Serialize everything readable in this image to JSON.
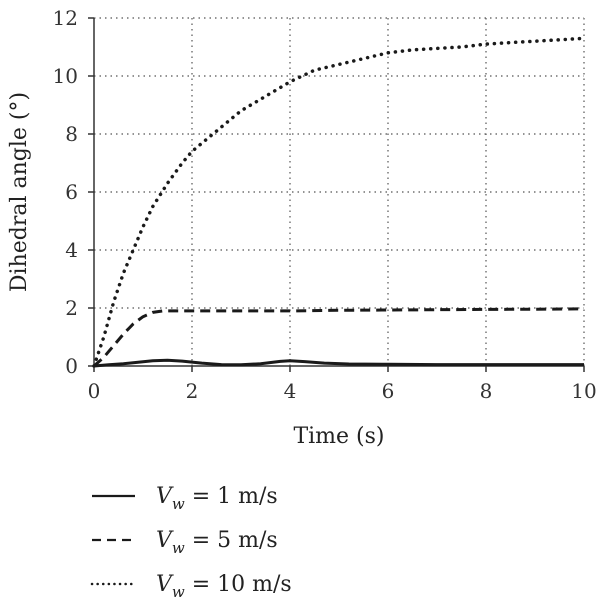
{
  "chart_data": {
    "type": "line",
    "xlabel": "Time (s)",
    "ylabel": "Dihedral angle (°)",
    "xlim": [
      0,
      10
    ],
    "ylim": [
      0,
      12
    ],
    "xticks": [
      0,
      2,
      4,
      6,
      8,
      10
    ],
    "yticks": [
      0,
      2,
      4,
      6,
      8,
      10,
      12
    ],
    "grid": true,
    "legend_position": "bottom",
    "series": [
      {
        "name": "V_w = 1 m/s",
        "legend": {
          "symbol": "V",
          "sub": "w",
          "rest": " = 1 m/s"
        },
        "style": "solid",
        "x": [
          0,
          0.3,
          0.6,
          0.9,
          1.2,
          1.5,
          1.8,
          2.2,
          2.6,
          3.0,
          3.4,
          3.8,
          4.0,
          4.3,
          4.7,
          5.2,
          6,
          7,
          8,
          9,
          10
        ],
        "y": [
          0,
          0.04,
          0.08,
          0.13,
          0.18,
          0.2,
          0.17,
          0.1,
          0.05,
          0.04,
          0.08,
          0.16,
          0.18,
          0.15,
          0.1,
          0.07,
          0.06,
          0.05,
          0.05,
          0.05,
          0.05
        ]
      },
      {
        "name": "V_w = 5 m/s",
        "legend": {
          "symbol": "V",
          "sub": "w",
          "rest": " = 5 m/s"
        },
        "style": "dashed",
        "x": [
          0,
          0.2,
          0.4,
          0.6,
          0.8,
          1.0,
          1.2,
          1.4,
          1.6,
          2,
          3,
          4,
          5,
          6,
          7,
          8,
          9,
          10
        ],
        "y": [
          0,
          0.3,
          0.7,
          1.1,
          1.45,
          1.7,
          1.85,
          1.9,
          1.9,
          1.9,
          1.9,
          1.9,
          1.92,
          1.93,
          1.94,
          1.95,
          1.96,
          1.97
        ]
      },
      {
        "name": "V_w = 10 m/s",
        "legend": {
          "symbol": "V",
          "sub": "w",
          "rest": " = 10 m/s"
        },
        "style": "dotted",
        "x": [
          0,
          0.2,
          0.4,
          0.6,
          0.8,
          1.0,
          1.2,
          1.5,
          1.8,
          2.0,
          2.5,
          3.0,
          3.5,
          4.0,
          4.5,
          5.0,
          5.5,
          6.0,
          6.5,
          7.0,
          7.5,
          8.0,
          8.5,
          9.0,
          9.5,
          10.0
        ],
        "y": [
          0,
          1.0,
          2.2,
          3.2,
          4.0,
          4.8,
          5.5,
          6.3,
          7.0,
          7.4,
          8.1,
          8.8,
          9.3,
          9.8,
          10.2,
          10.4,
          10.6,
          10.8,
          10.9,
          10.95,
          11.0,
          11.1,
          11.15,
          11.2,
          11.25,
          11.3
        ]
      }
    ]
  }
}
